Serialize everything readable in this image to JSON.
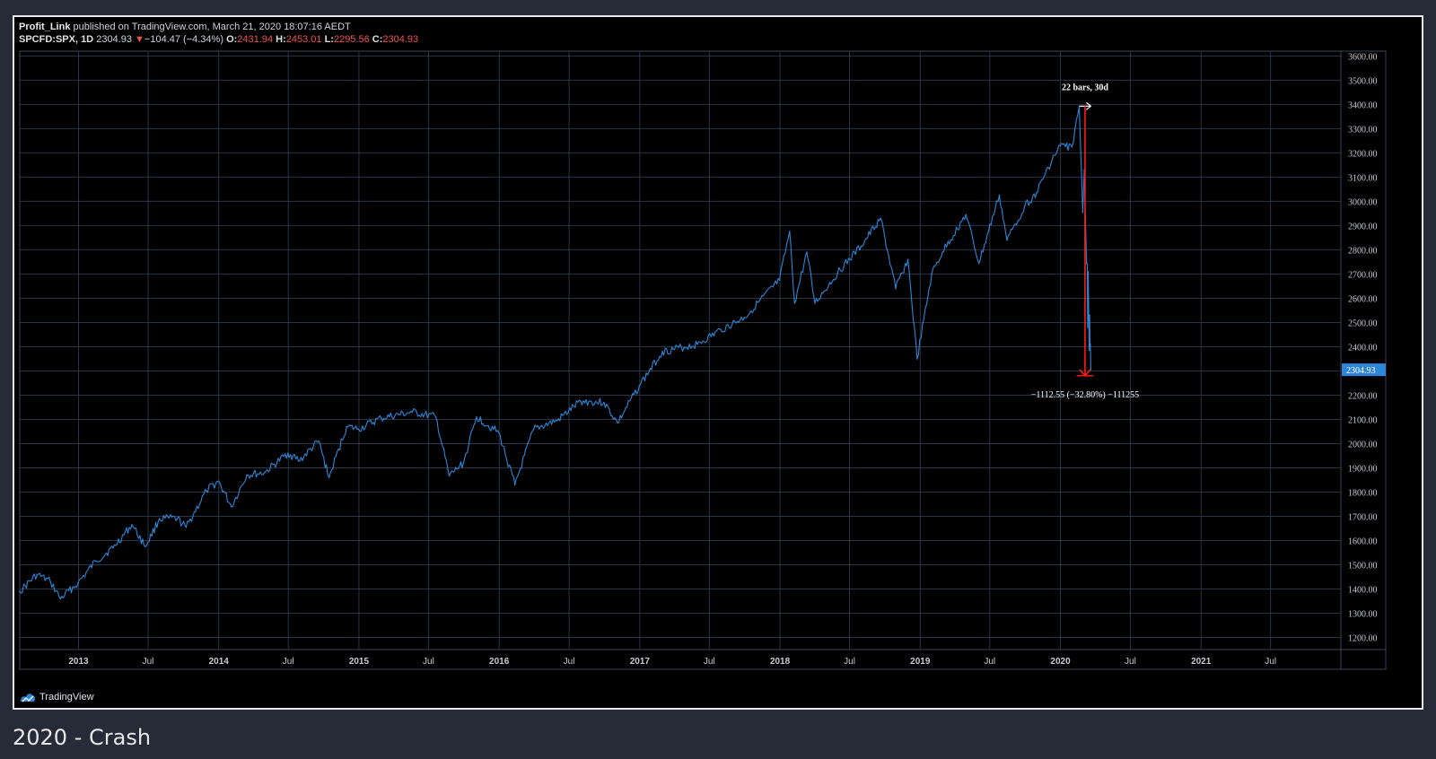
{
  "header": {
    "author": "Profit_Link",
    "published": "published on TradingView.com, March 21, 2020 18:07:16 AEDT",
    "symbol": "SPCFD:SPX, 1D",
    "last": "2304.93",
    "change_arrow": "▼",
    "change": "−104.47 (−4.34%)",
    "o_label": "O:",
    "o": "2431.94",
    "h_label": "H:",
    "h": "2453.01",
    "l_label": "L:",
    "l": "2295.56",
    "c_label": "C:",
    "c": "2304.93"
  },
  "brand": {
    "name": "TradingView",
    "icon": "tradingview-logo-icon"
  },
  "caption": "2020 - Crash",
  "colors": {
    "line": "#2f86d8",
    "measure": "#ff1a1a",
    "price_badge": "#2f86d8",
    "grid": "#2a3548",
    "axis_text": "#c8ccd4"
  },
  "chart_data": {
    "type": "line",
    "title": "",
    "xlabel": "",
    "ylabel": "",
    "x_ticks": [
      "2013",
      "Jul",
      "2014",
      "Jul",
      "2015",
      "Jul",
      "2016",
      "Jul",
      "2017",
      "Jul",
      "2018",
      "Jul",
      "2019",
      "Jul",
      "2020",
      "Jul",
      "2021",
      "Jul"
    ],
    "x_range": [
      "2012-08-01",
      "2021-12-31"
    ],
    "ylim": [
      1150,
      3620
    ],
    "y_ticks": [
      "1200.00",
      "1300.00",
      "1400.00",
      "1500.00",
      "1600.00",
      "1700.00",
      "1800.00",
      "1900.00",
      "2000.00",
      "2100.00",
      "2200.00",
      "2300.00",
      "2400.00",
      "2500.00",
      "2600.00",
      "2700.00",
      "2800.00",
      "2900.00",
      "3000.00",
      "3100.00",
      "3200.00",
      "3300.00",
      "3400.00",
      "3500.00",
      "3600.00"
    ],
    "grid": true,
    "last_price_label": "2304.93",
    "series": [
      {
        "x": [
          "2012-08-01",
          "2012-09-15",
          "2012-10-20",
          "2012-11-15",
          "2012-12-31",
          "2013-02-15",
          "2013-04-01",
          "2013-05-20",
          "2013-06-24",
          "2013-07-31",
          "2013-09-15",
          "2013-10-08",
          "2013-11-30",
          "2013-12-31",
          "2014-02-03",
          "2014-03-15",
          "2014-04-30",
          "2014-06-30",
          "2014-07-31",
          "2014-09-18",
          "2014-10-15",
          "2014-11-30",
          "2014-12-31",
          "2015-02-28",
          "2015-05-20",
          "2015-07-20",
          "2015-08-24",
          "2015-09-30",
          "2015-11-03",
          "2015-12-31",
          "2016-02-11",
          "2016-03-31",
          "2016-05-31",
          "2016-07-31",
          "2016-09-30",
          "2016-11-04",
          "2016-12-31",
          "2017-03-01",
          "2017-05-31",
          "2017-07-31",
          "2017-09-30",
          "2017-12-31",
          "2018-01-26",
          "2018-02-08",
          "2018-03-12",
          "2018-04-02",
          "2018-05-31",
          "2018-07-31",
          "2018-09-20",
          "2018-10-29",
          "2018-11-30",
          "2018-12-24",
          "2019-01-31",
          "2019-02-28",
          "2019-04-30",
          "2019-06-03",
          "2019-07-26",
          "2019-08-15",
          "2019-09-30",
          "2019-10-31",
          "2019-11-30",
          "2019-12-31",
          "2020-01-31",
          "2020-02-19",
          "2020-02-28",
          "2020-03-03",
          "2020-03-09",
          "2020-03-11",
          "2020-03-12",
          "2020-03-13",
          "2020-03-16",
          "2020-03-17",
          "2020-03-18",
          "2020-03-19",
          "2020-03-20"
        ],
        "y": [
          1390,
          1460,
          1430,
          1360,
          1425,
          1515,
          1570,
          1665,
          1575,
          1690,
          1690,
          1655,
          1805,
          1845,
          1740,
          1870,
          1880,
          1960,
          1930,
          2010,
          1860,
          2070,
          2060,
          2105,
          2130,
          2110,
          1867,
          1920,
          2110,
          2045,
          1830,
          2060,
          2095,
          2175,
          2170,
          2085,
          2240,
          2380,
          2410,
          2470,
          2520,
          2675,
          2875,
          2580,
          2790,
          2580,
          2705,
          2815,
          2930,
          2640,
          2760,
          2350,
          2700,
          2790,
          2945,
          2745,
          3025,
          2840,
          2980,
          3035,
          3140,
          3230,
          3225,
          3390,
          2955,
          3130,
          2745,
          2740,
          2480,
          2710,
          2385,
          2530,
          2400,
          2410,
          2305
        ]
      }
    ],
    "annotations": [
      {
        "type": "measure",
        "top_label": "22 bars, 30d",
        "bottom_label": "−1112.55 (−32.80%) −111255",
        "x_start": "2020-02-19",
        "x_end": "2020-03-20",
        "y_start": 3393,
        "y_end": 2280
      }
    ]
  }
}
